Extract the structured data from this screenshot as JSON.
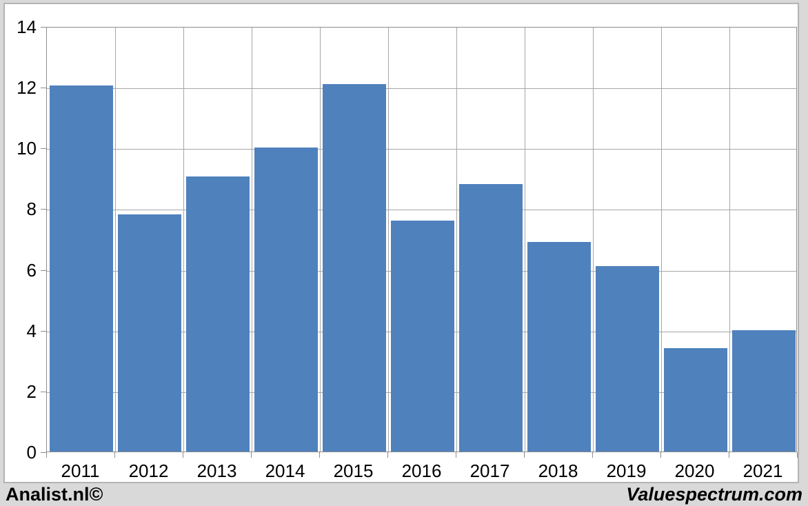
{
  "page": {
    "background_color": "#d9d9d9",
    "card_background_color": "#ffffff",
    "card_border_color": "#b3b3b3"
  },
  "chart_data": {
    "type": "bar",
    "categories": [
      "2011",
      "2012",
      "2013",
      "2014",
      "2015",
      "2016",
      "2017",
      "2018",
      "2019",
      "2020",
      "2021"
    ],
    "values": [
      12.05,
      7.8,
      9.05,
      10.0,
      12.1,
      7.6,
      8.8,
      6.9,
      6.1,
      3.4,
      4.0
    ],
    "title": "",
    "xlabel": "",
    "ylabel": "",
    "ylim": [
      0,
      14
    ],
    "yticks": [
      0,
      2,
      4,
      6,
      8,
      10,
      12,
      14
    ],
    "grid": true,
    "legend": false,
    "bar_color": "#4f81bd",
    "gridline_color": "#a6a6a6",
    "axis_color": "#8c8c8c",
    "tick_label_color": "#000000"
  },
  "footer": {
    "left": "Analist.nl©",
    "right": "Valuespectrum.com"
  }
}
